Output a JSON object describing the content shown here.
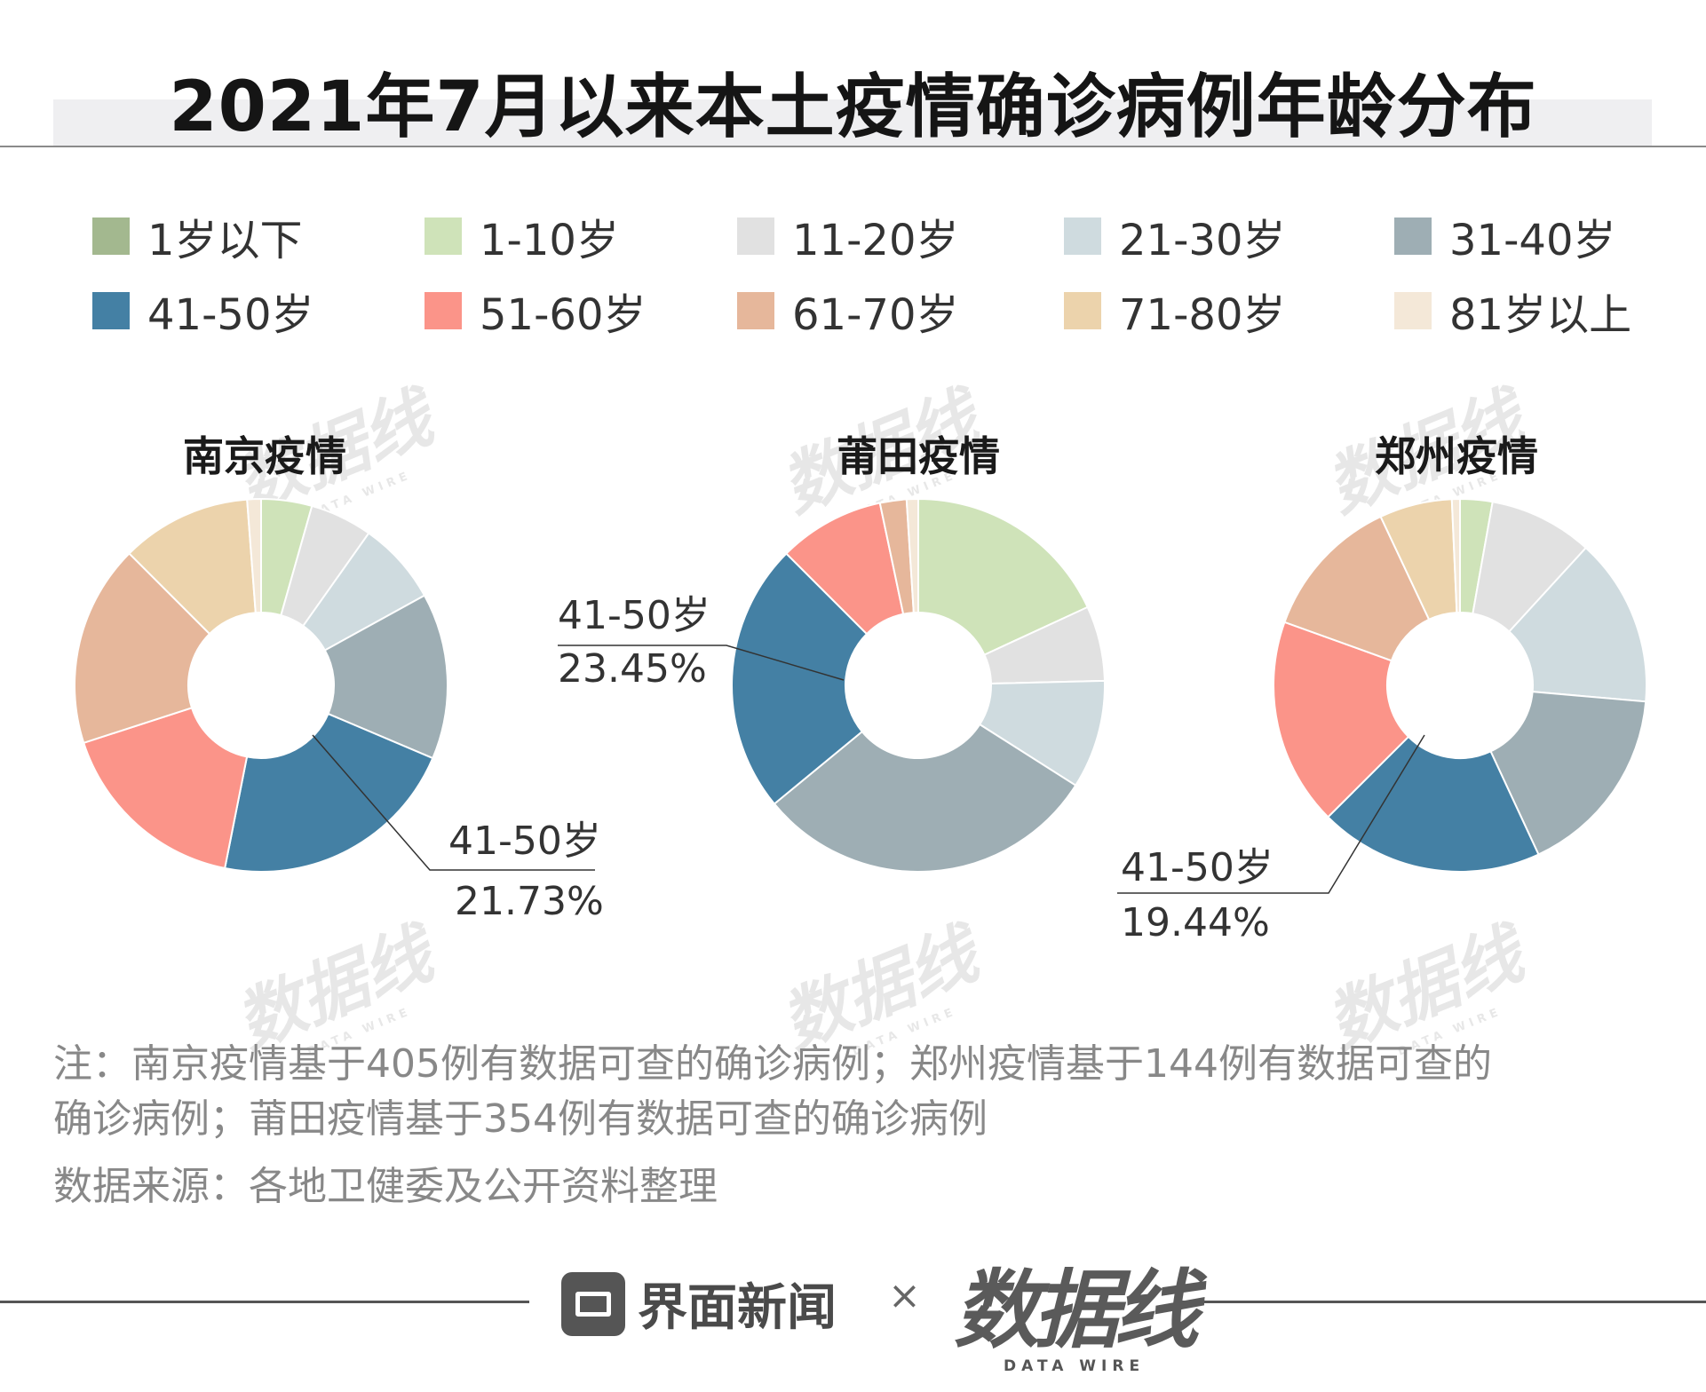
{
  "title": "2021年7月以来本土疫情确诊病例年龄分布",
  "legend": [
    {
      "label": "1岁以下",
      "color": "#a3b88f"
    },
    {
      "label": "1-10岁",
      "color": "#cfe3b9"
    },
    {
      "label": "11-20岁",
      "color": "#e1e1e1"
    },
    {
      "label": "21-30岁",
      "color": "#cfdbdf"
    },
    {
      "label": "31-40岁",
      "color": "#9eaeb4"
    },
    {
      "label": "41-50岁",
      "color": "#4480a4"
    },
    {
      "label": "51-60岁",
      "color": "#fb9489"
    },
    {
      "label": "61-70岁",
      "color": "#e6b79b"
    },
    {
      "label": "71-80岁",
      "color": "#ecd3ac"
    },
    {
      "label": "81岁以上",
      "color": "#f4e8d8"
    }
  ],
  "chart_data": [
    {
      "type": "pie",
      "style": "donut",
      "title": "南京疫情",
      "categories": [
        "1岁以下",
        "1-10岁",
        "11-20岁",
        "21-30岁",
        "31-40岁",
        "41-50岁",
        "51-60岁",
        "61-70岁",
        "71-80岁",
        "81岁以上"
      ],
      "values": [
        0.0,
        4.4,
        5.4,
        7.2,
        14.4,
        21.73,
        16.9,
        17.5,
        11.3,
        1.2
      ],
      "annotation": {
        "label": "41-50岁",
        "value": "21.73%"
      }
    },
    {
      "type": "pie",
      "style": "donut",
      "title": "莆田疫情",
      "categories": [
        "1岁以下",
        "1-10岁",
        "11-20岁",
        "21-30岁",
        "31-40岁",
        "41-50岁",
        "51-60岁",
        "61-70岁",
        "71-80岁",
        "81岁以上"
      ],
      "values": [
        0.0,
        18.1,
        6.5,
        9.4,
        30.0,
        23.45,
        9.2,
        2.3,
        0.0,
        1.0
      ],
      "annotation": {
        "label": "41-50岁",
        "value": "23.45%"
      }
    },
    {
      "type": "pie",
      "style": "donut",
      "title": "郑州疫情",
      "categories": [
        "1岁以下",
        "1-10岁",
        "11-20岁",
        "21-30岁",
        "31-40岁",
        "41-50岁",
        "51-60岁",
        "61-70岁",
        "71-80岁",
        "81岁以上"
      ],
      "values": [
        0.0,
        2.8,
        9.0,
        14.6,
        16.7,
        19.44,
        18.0,
        12.5,
        6.3,
        0.7
      ],
      "annotation": {
        "label": "41-50岁",
        "value": "19.44%"
      }
    }
  ],
  "source": {
    "note_line1": "注：南京疫情基于405例有数据可查的确诊病例；郑州疫情基于144例有数据可查的",
    "note_line2": "确诊病例；莆田疫情基于354例有数据可查的确诊病例",
    "data_source": "数据来源：各地卫健委及公开资料整理"
  },
  "footer": {
    "brand": "界面新闻",
    "times": "×",
    "partner": "数据线",
    "partner_sub": "DATA WIRE"
  },
  "watermark": {
    "main": "数据线",
    "sub": "DATA WIRE"
  }
}
